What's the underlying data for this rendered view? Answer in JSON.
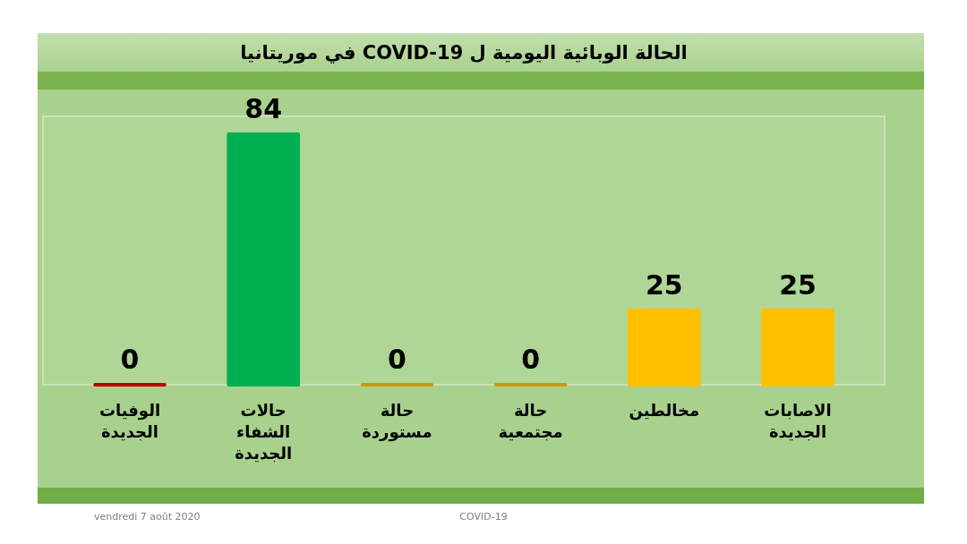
{
  "chart_data": {
    "type": "bar",
    "title": "الحالة الوبائية اليومية ل   COVID-19 في موريتانيا",
    "categories": [
      "الوفيات الجديدة",
      "حالات الشفاء الجديدة",
      "حالة مستوردة",
      "حالة مجتمعية",
      "مخالطين",
      "الاصابات الجديدة"
    ],
    "values": [
      0,
      84,
      0,
      0,
      25,
      25
    ],
    "colors": [
      "#c00000",
      "#00b050",
      "#c99a06",
      "#c99a06",
      "#ffc000",
      "#ffc000"
    ],
    "data_labels": true,
    "annotations": [
      "vendredi 7 août 2020",
      "COVID-19"
    ]
  }
}
